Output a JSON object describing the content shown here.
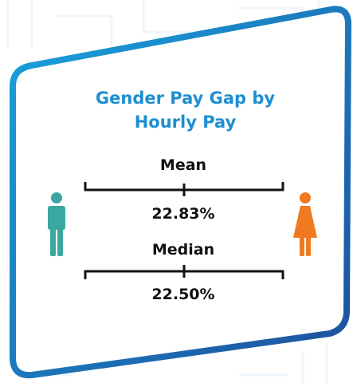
{
  "title": "Gender Pay Gap by Hourly Pay",
  "metrics": [
    {
      "label": "Mean",
      "value": "22.83%"
    },
    {
      "label": "Median",
      "value": "22.50%"
    }
  ]
}
